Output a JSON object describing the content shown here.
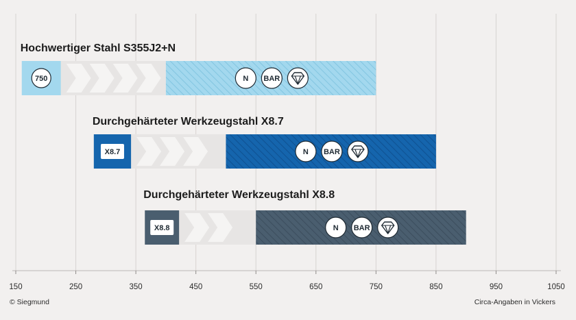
{
  "chart_data": {
    "type": "bar",
    "subtype": "floating-range",
    "x_axis": {
      "min": 150,
      "max": 1050,
      "ticks": [
        150,
        250,
        350,
        450,
        550,
        650,
        750,
        850,
        950,
        1050
      ],
      "tick_labels": [
        "150",
        "250",
        "350",
        "450",
        "550",
        "650",
        "750",
        "850",
        "950",
        "1050"
      ],
      "grid": true
    },
    "series": [
      {
        "name": "Hochwertiger Stahl S355J2+N",
        "code_label": "750",
        "start": 160,
        "fade_start": 225,
        "fade_end": 400,
        "end": 750,
        "badges": [
          "N",
          "BAR",
          "diamond"
        ],
        "color_solid": "#a3d8ee",
        "color_hatch": "#7fc3e0",
        "code_fill": "#a3d8ee",
        "code_circle": true
      },
      {
        "name": "Durchgehärteter Werkzeugstahl X8.7",
        "code_label": "X8.7",
        "start": 280,
        "fade_start": 342,
        "fade_end": 500,
        "end": 850,
        "badges": [
          "N",
          "BAR",
          "diamond"
        ],
        "color_solid": "#1565ad",
        "color_hatch": "#0d4f8e",
        "code_fill": "#1565ad",
        "code_circle": false
      },
      {
        "name": "Durchgehärteter Werkzeugstahl X8.8",
        "code_label": "X8.8",
        "start": 365,
        "fade_start": 422,
        "fade_end": 550,
        "end": 900,
        "badges": [
          "N",
          "BAR",
          "diamond"
        ],
        "color_solid": "#4a5e6f",
        "color_hatch": "#394b5a",
        "code_fill": "#4a5e6f",
        "code_circle": false
      }
    ],
    "footer_left": "© Siegmund",
    "footer_right": "Circa-Angaben in Vickers"
  }
}
